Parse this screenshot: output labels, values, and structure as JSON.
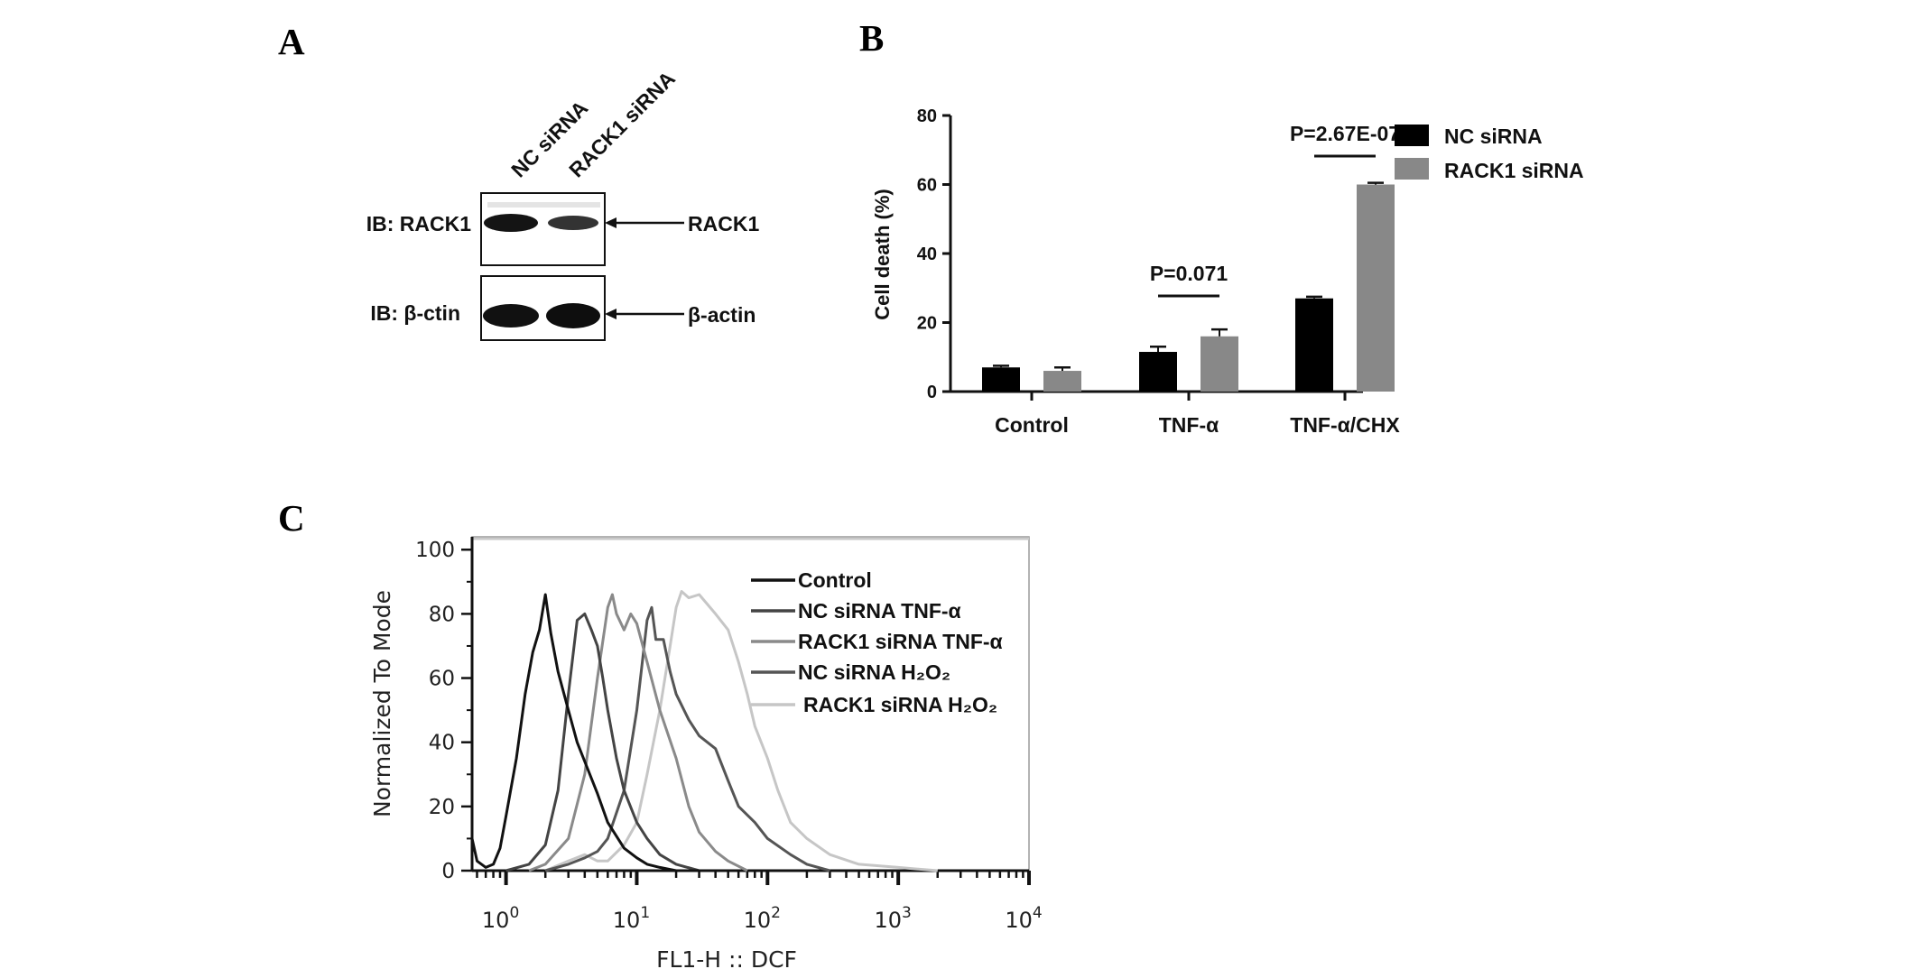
{
  "panels": {
    "a": "A",
    "b": "B",
    "c": "C"
  },
  "western_blot": {
    "lanes": [
      "NC siRNA",
      "RACK1 siRNA"
    ],
    "rows": [
      {
        "ib_label": "IB: RACK1",
        "target": "RACK1"
      },
      {
        "ib_label": "IB: β-ctin",
        "target": "β-actin"
      }
    ]
  },
  "chart_data": [
    {
      "type": "bar",
      "categories": [
        "Control",
        "TNF-α",
        "TNF-α/CHX"
      ],
      "series": [
        {
          "name": "NC siRNA",
          "color": "#000000",
          "values": [
            7,
            11.5,
            27
          ],
          "errors": [
            0.5,
            1.5,
            0.5
          ]
        },
        {
          "name": "RACK1 siRNA",
          "color": "#888888",
          "values": [
            6,
            16,
            60
          ],
          "errors": [
            1,
            2,
            0.5
          ]
        }
      ],
      "ylabel": "Cell death (%)",
      "ylim": [
        0,
        80
      ],
      "yticks": [
        0,
        20,
        40,
        60,
        80
      ],
      "annotations": [
        {
          "category": "TNF-α",
          "text": "P=0.071"
        },
        {
          "category": "TNF-α/CHX",
          "text": "P=2.67E-07"
        }
      ],
      "legend_position": "top-right"
    },
    {
      "type": "line",
      "xlabel": "FL1-H :: DCF",
      "ylabel": "Normalized To Mode",
      "x_scale": "log",
      "xlim": [
        0.55,
        10000
      ],
      "xticks": [
        "10^0",
        "10^1",
        "10^2",
        "10^3",
        "10^4"
      ],
      "ylim": [
        0,
        104
      ],
      "yticks": [
        0,
        20,
        40,
        60,
        80,
        100
      ],
      "legend_position": "top-right",
      "series": [
        {
          "name": "Control",
          "color": "#111111",
          "x": [
            0.55,
            0.6,
            0.7,
            0.8,
            0.9,
            1.0,
            1.2,
            1.4,
            1.6,
            1.8,
            2.0,
            2.2,
            2.5,
            3.0,
            3.5,
            4.0,
            5.0,
            6.0,
            8.0,
            10,
            12,
            15,
            20,
            30
          ],
          "y": [
            10,
            3,
            1,
            2,
            7,
            17,
            35,
            55,
            68,
            75,
            86,
            74,
            62,
            50,
            40,
            34,
            24,
            15,
            7,
            4,
            2,
            1,
            0,
            0
          ]
        },
        {
          "name": "NC siRNA TNF-α",
          "color": "#444444",
          "x": [
            1.0,
            1.5,
            2.0,
            2.5,
            3.0,
            3.5,
            4.0,
            4.5,
            5.0,
            5.5,
            6.0,
            7.0,
            8.0,
            10,
            12,
            15,
            20,
            30
          ],
          "y": [
            0,
            2,
            8,
            25,
            55,
            78,
            80,
            75,
            70,
            60,
            50,
            35,
            25,
            15,
            10,
            5,
            2,
            0
          ]
        },
        {
          "name": "RACK1 siRNA TNF-α",
          "color": "#8a8a8a",
          "x": [
            1.5,
            2.0,
            3.0,
            4.0,
            5.0,
            6.0,
            6.5,
            7.0,
            8.0,
            9.0,
            10,
            12,
            15,
            20,
            25,
            30,
            40,
            50,
            70
          ],
          "y": [
            0,
            2,
            10,
            30,
            60,
            82,
            86,
            80,
            75,
            80,
            77,
            65,
            50,
            35,
            20,
            12,
            6,
            3,
            0
          ]
        },
        {
          "name": "NC siRNA H₂O₂",
          "color": "#555555",
          "x": [
            2,
            3,
            4,
            5,
            6,
            8,
            10,
            12,
            13,
            14,
            16,
            18,
            20,
            25,
            30,
            40,
            50,
            60,
            80,
            100,
            150,
            200,
            300
          ],
          "y": [
            0,
            2,
            4,
            6,
            10,
            25,
            50,
            78,
            82,
            72,
            72,
            62,
            55,
            47,
            42,
            38,
            28,
            20,
            15,
            10,
            5,
            2,
            0
          ]
        },
        {
          "name": "RACK1 siRNA H₂O₂",
          "color": "#c6c6c6",
          "x": [
            2,
            3,
            4,
            5,
            6,
            8,
            10,
            12,
            15,
            18,
            20,
            22,
            25,
            30,
            40,
            50,
            60,
            70,
            80,
            100,
            120,
            150,
            200,
            300,
            500,
            1000,
            2000
          ],
          "y": [
            0,
            3,
            5,
            3,
            3,
            8,
            15,
            30,
            50,
            70,
            82,
            87,
            85,
            86,
            80,
            75,
            65,
            55,
            45,
            35,
            25,
            15,
            10,
            5,
            2,
            1,
            0
          ]
        }
      ]
    }
  ]
}
